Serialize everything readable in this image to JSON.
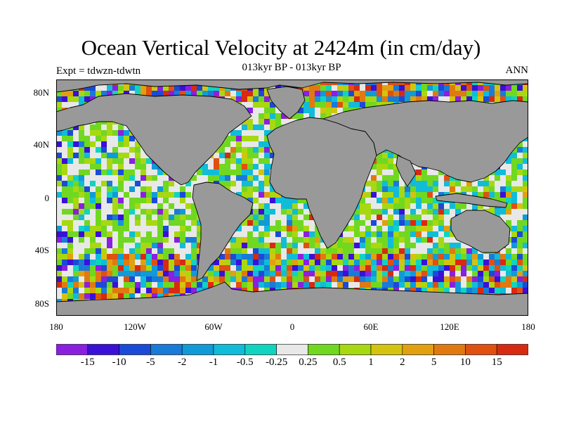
{
  "title": "Ocean Vertical Velocity at 2424m (in cm/day)",
  "subtitle": "013kyr BP - 013kyr BP",
  "left_string": "Expt = tdwzn-tdwtn",
  "right_string": "ANN",
  "lat_labels": [
    "80N",
    "40N",
    "0",
    "40S",
    "80S"
  ],
  "lon_labels": [
    "180",
    "120W",
    "60W",
    "0",
    "60E",
    "120E",
    "180"
  ],
  "colorbar": {
    "labels": [
      "-15",
      "-10",
      "-5",
      "-2",
      "-1",
      "-0.5",
      "-0.25",
      "0.25",
      "0.5",
      "1",
      "2",
      "5",
      "10",
      "15"
    ],
    "colors": [
      "#8a1fe0",
      "#3a10d8",
      "#1a4ad8",
      "#1a7ad8",
      "#109ad8",
      "#10bcd8",
      "#10d4c0",
      "#e8e8e8",
      "#70d820",
      "#a8d810",
      "#d4c410",
      "#e0a010",
      "#e07a10",
      "#e05010",
      "#d82a10"
    ]
  },
  "map_colors": {
    "land": "#999999",
    "coast": "#000000"
  }
}
